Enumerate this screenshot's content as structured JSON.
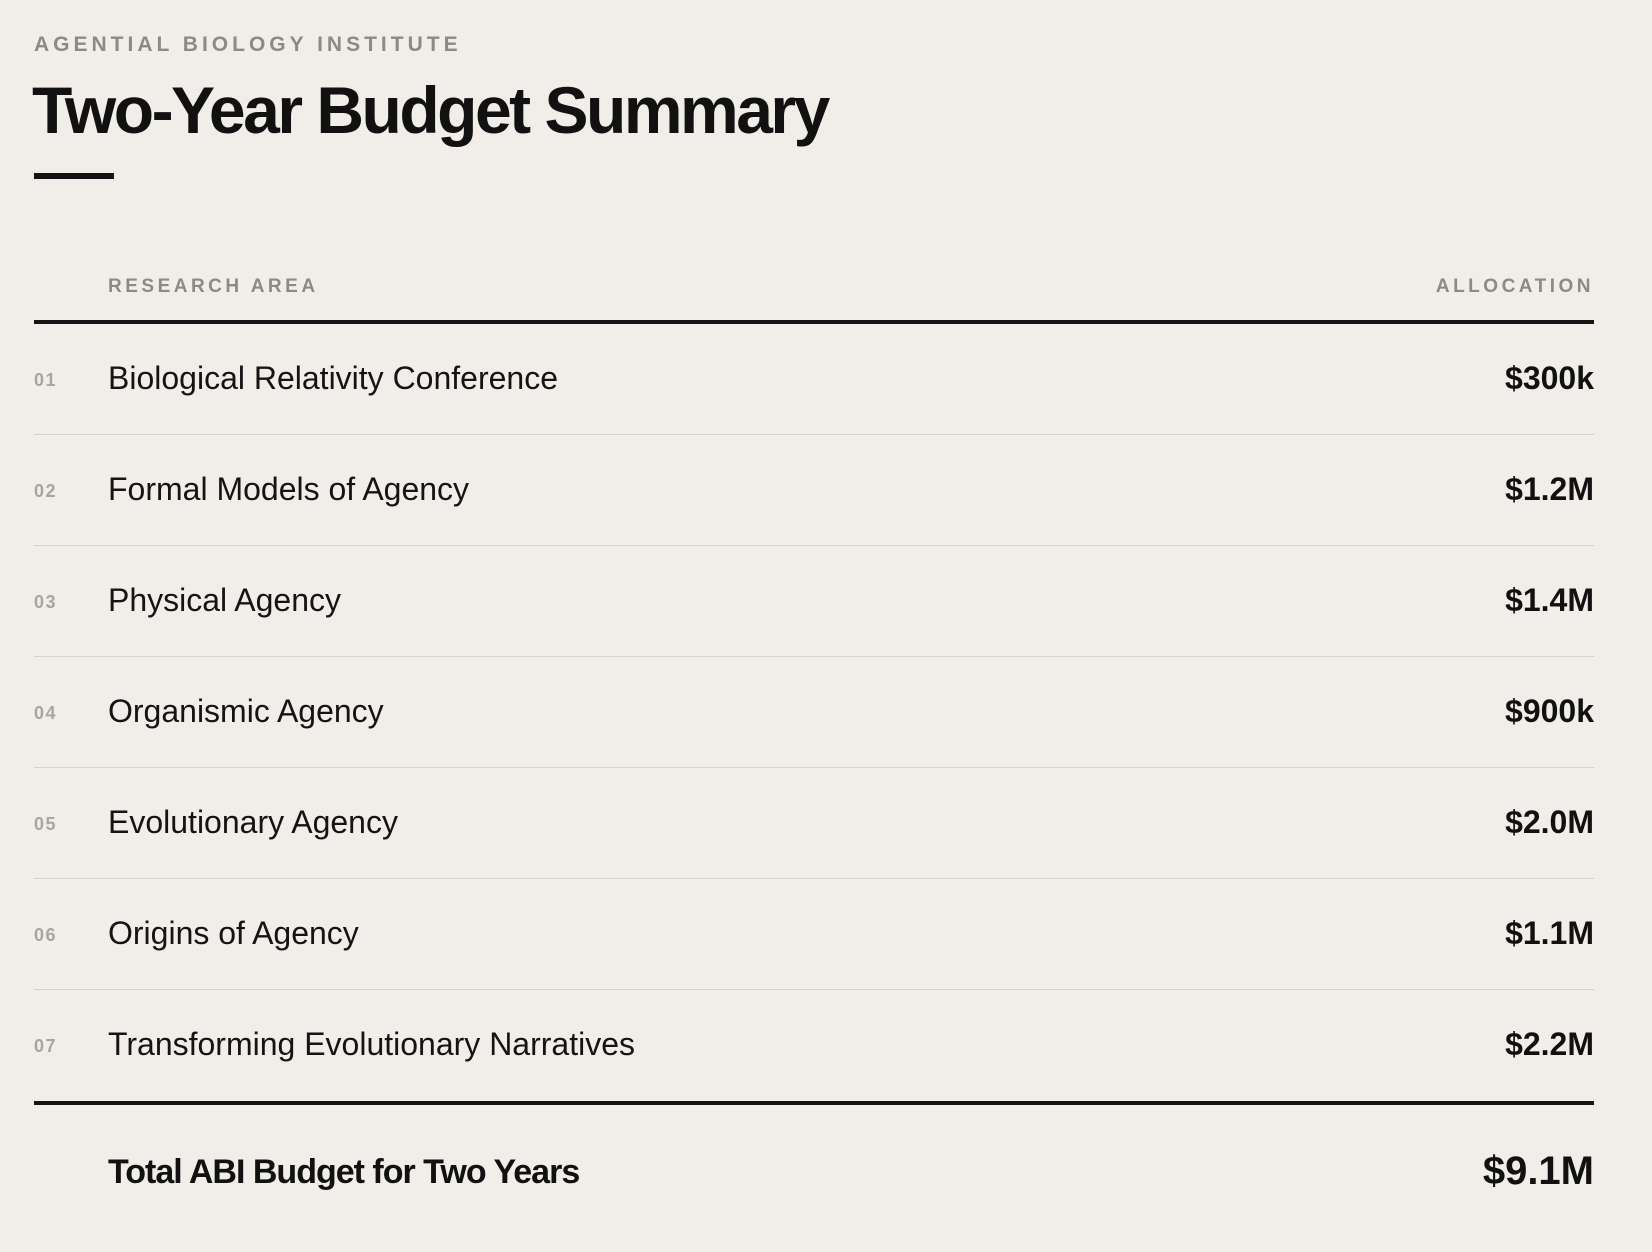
{
  "header": {
    "eyebrow": "AGENTIAL BIOLOGY INSTITUTE",
    "title": "Two-Year Budget Summary"
  },
  "table": {
    "columns": {
      "area": "RESEARCH AREA",
      "allocation": "ALLOCATION"
    },
    "rows": [
      {
        "num": "01",
        "label": "Biological Relativity Conference",
        "value": "$300k"
      },
      {
        "num": "02",
        "label": "Formal Models of Agency",
        "value": "$1.2M"
      },
      {
        "num": "03",
        "label": "Physical Agency",
        "value": "$1.4M"
      },
      {
        "num": "04",
        "label": "Organismic Agency",
        "value": "$900k"
      },
      {
        "num": "05",
        "label": "Evolutionary Agency",
        "value": "$2.0M"
      },
      {
        "num": "06",
        "label": "Origins of Agency",
        "value": "$1.1M"
      },
      {
        "num": "07",
        "label": "Transforming Evolutionary Narratives",
        "value": "$2.2M"
      }
    ],
    "total": {
      "label": "Total ABI Budget for Two Years",
      "value": "$9.1M"
    }
  }
}
